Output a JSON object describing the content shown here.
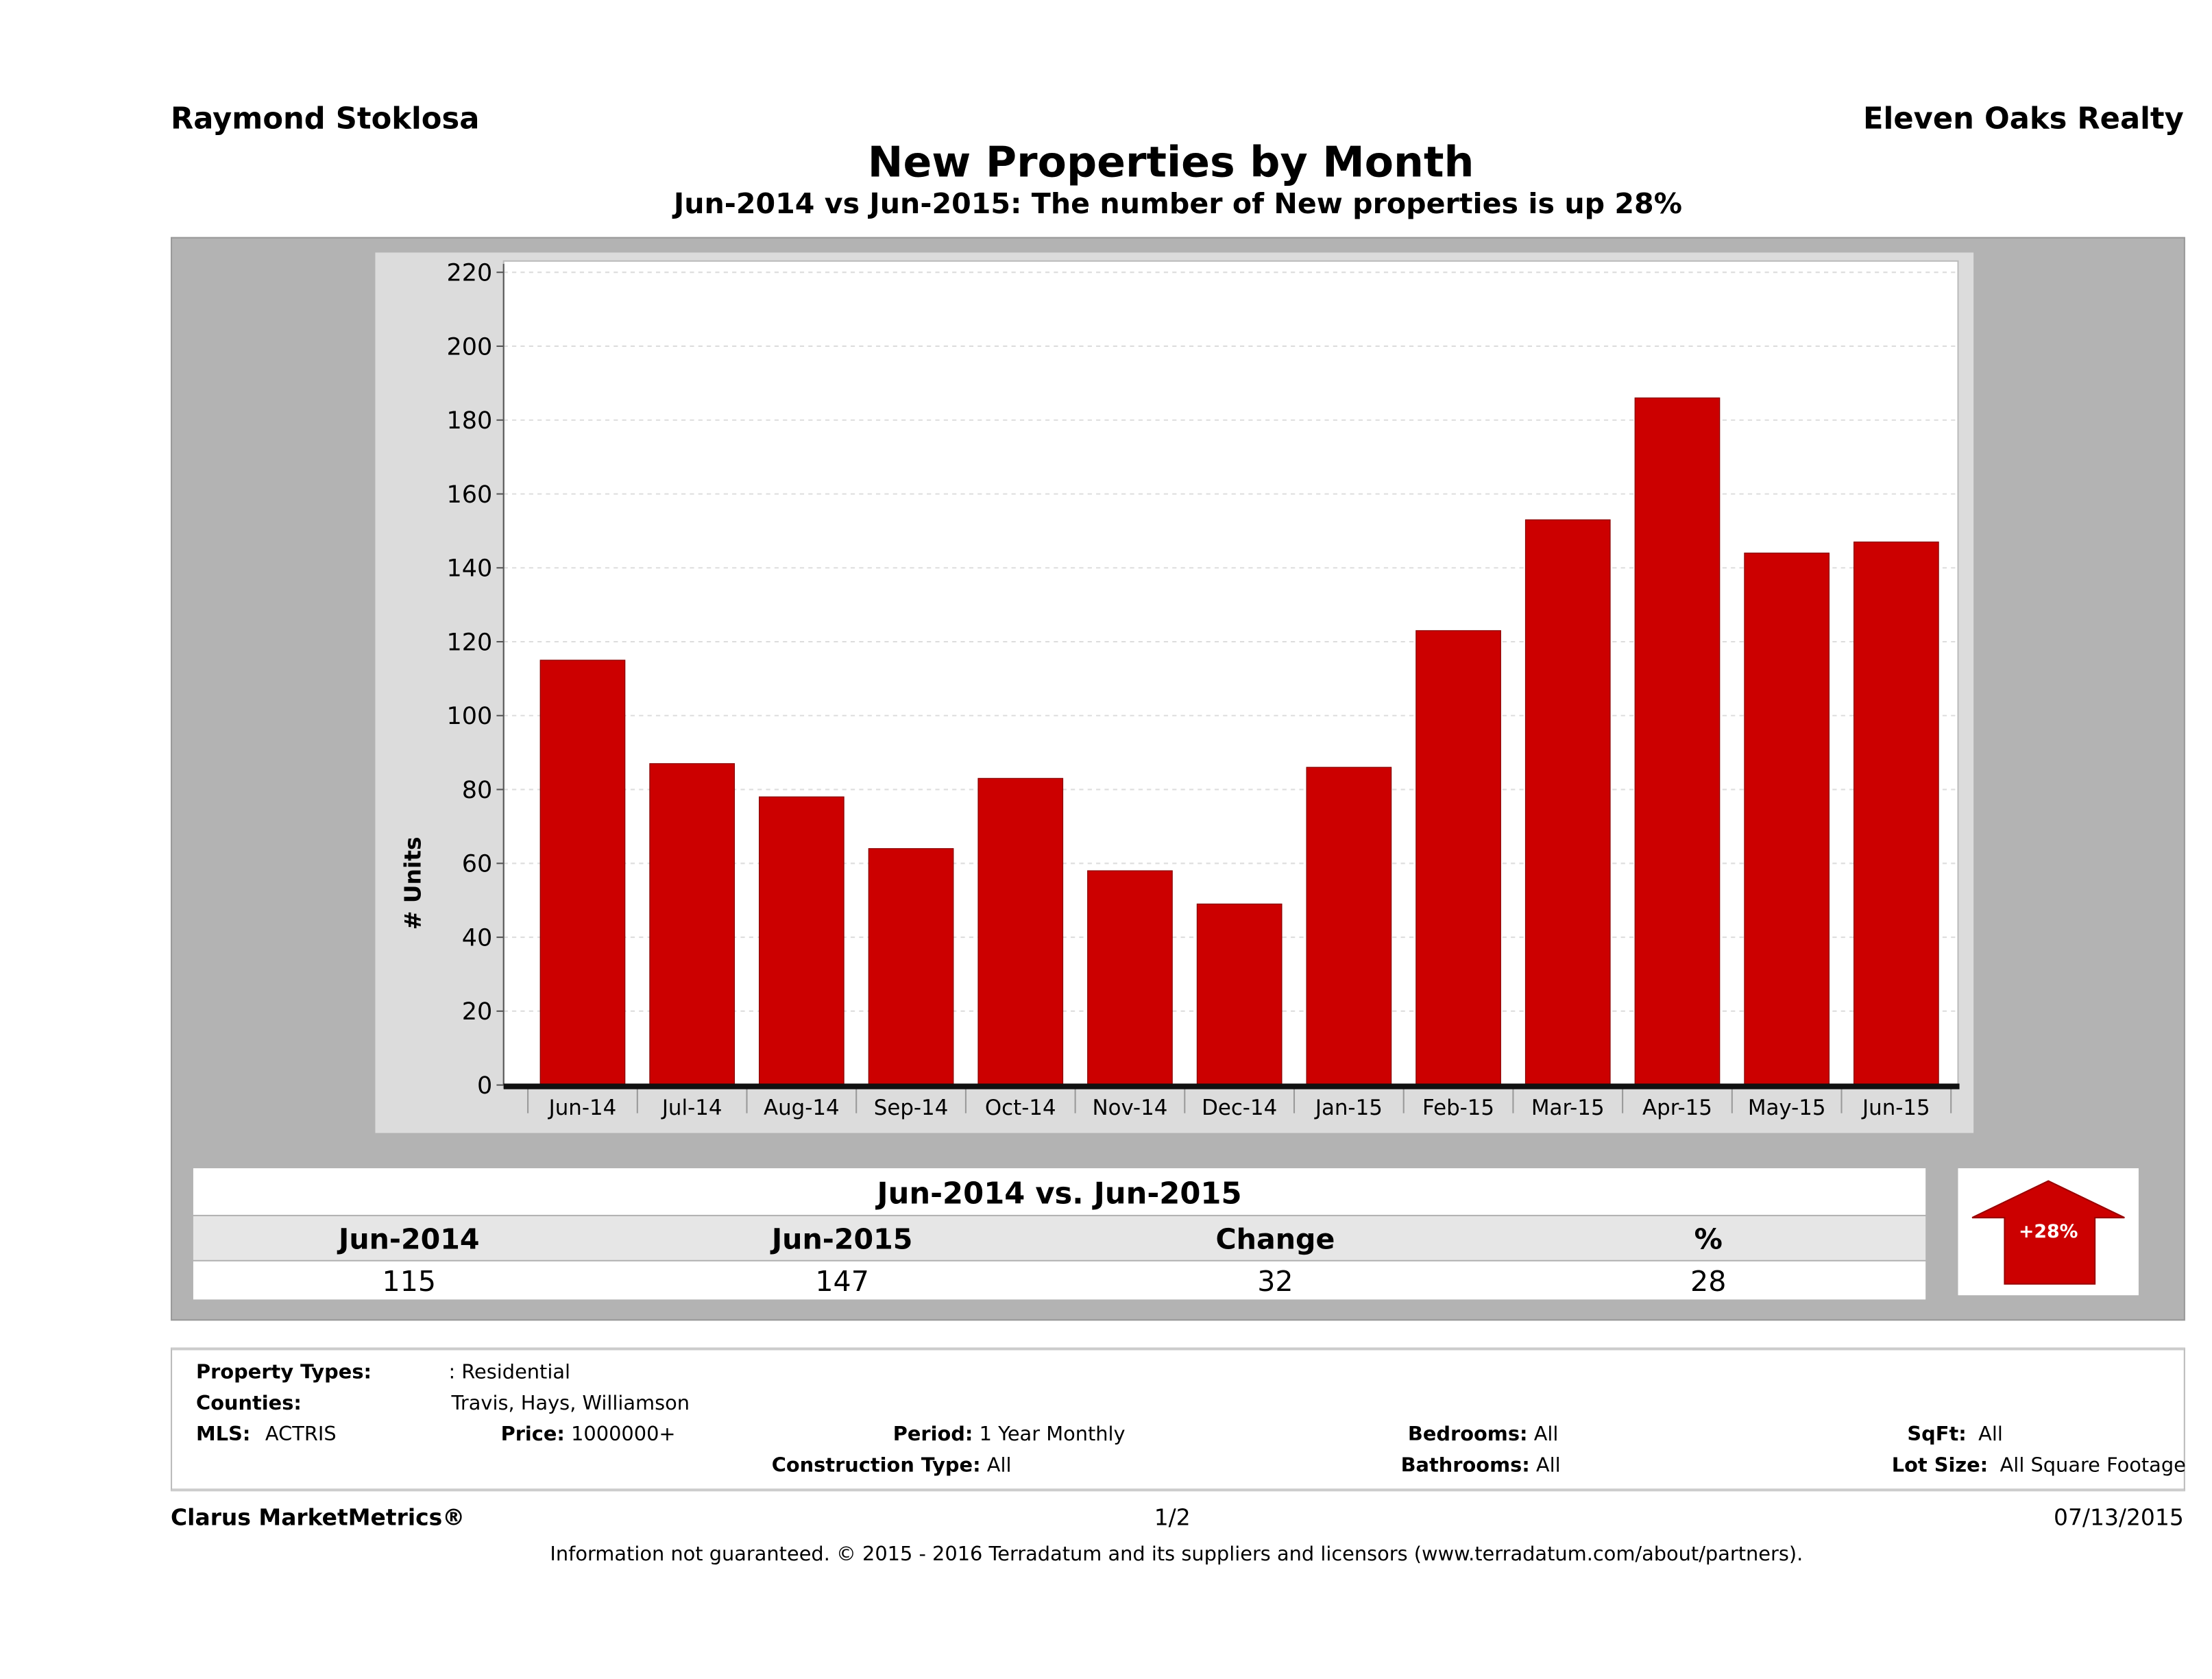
{
  "header": {
    "agent": "Raymond Stoklosa",
    "company": "Eleven Oaks Realty"
  },
  "chart_data": {
    "type": "bar",
    "title": "New Properties by Month",
    "subtitle": "Jun-2014 vs Jun-2015: The number of New  properties is up 28%",
    "xlabel": "",
    "ylabel": "# Units",
    "ylim": [
      0,
      220
    ],
    "yticks": [
      0,
      20,
      40,
      60,
      80,
      100,
      120,
      140,
      160,
      180,
      200,
      220
    ],
    "categories": [
      "Jun-14",
      "Jul-14",
      "Aug-14",
      "Sep-14",
      "Oct-14",
      "Nov-14",
      "Dec-14",
      "Jan-15",
      "Feb-15",
      "Mar-15",
      "Apr-15",
      "May-15",
      "Jun-15"
    ],
    "values": [
      115,
      87,
      78,
      64,
      83,
      58,
      49,
      86,
      123,
      153,
      186,
      144,
      147
    ],
    "grid": true,
    "bar_color": "#cc0000"
  },
  "summary": {
    "title": "Jun-2014 vs. Jun-2015",
    "headers": [
      "Jun-2014",
      "Jun-2015",
      "Change",
      "%"
    ],
    "values": [
      "115",
      "147",
      "32",
      "28"
    ],
    "badge": "+28%"
  },
  "info": {
    "property_types_label": "Property Types:",
    "property_types": ": Residential",
    "counties_label": "Counties:",
    "counties": "Travis, Hays, Williamson",
    "mls_label": "MLS:",
    "mls": "ACTRIS",
    "price_label": "Price:",
    "price": "1000000+",
    "period_label": "Period:",
    "period": "1 Year Monthly",
    "construction_label": "Construction Type:",
    "construction": "All",
    "bedrooms_label": "Bedrooms:",
    "bedrooms": "All",
    "bathrooms_label": "Bathrooms:",
    "bathrooms": "All",
    "sqft_label": "SqFt:",
    "sqft": "All",
    "lot_label": "Lot Size:",
    "lot": "All Square Footage"
  },
  "footer": {
    "brand": "Clarus MarketMetrics®",
    "page": "1/2",
    "date": "07/13/2015",
    "disclaimer": "Information not guaranteed. © 2015 - 2016 Terradatum and its suppliers and licensors (www.terradatum.com/about/partners)."
  }
}
